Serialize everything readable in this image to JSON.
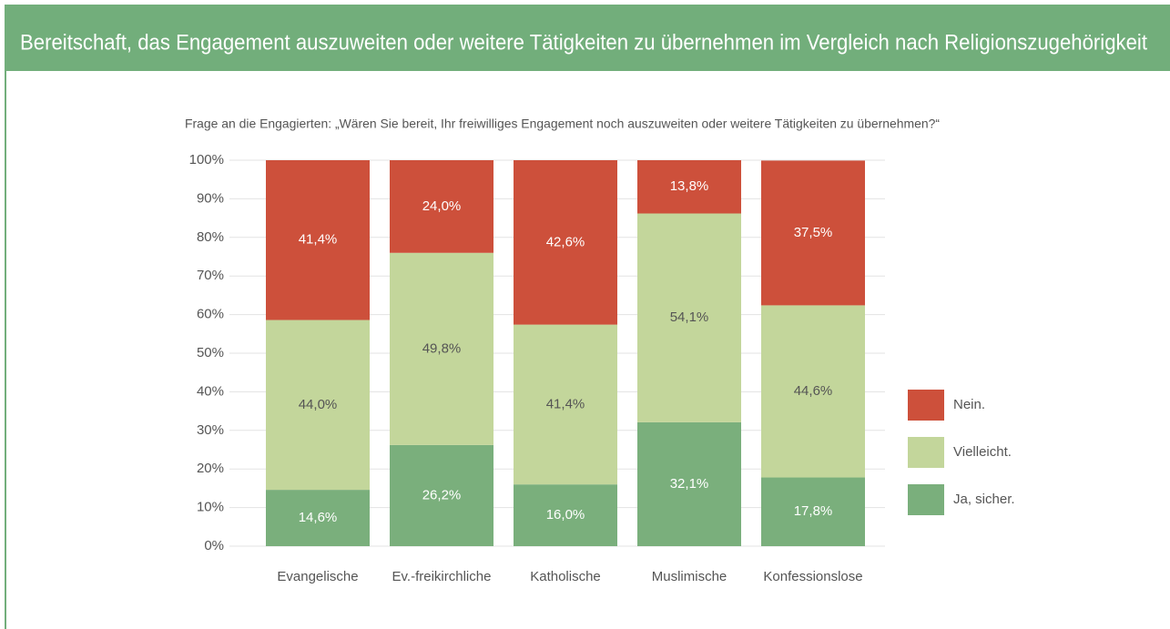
{
  "chart_data": {
    "type": "stacked_bar",
    "title": "Bereitschaft, das Engagement auszuweiten oder weitere Tätigkeiten zu übernehmen im Vergleich nach Religionszugehörigkeit",
    "subtitle": "Frage an die Engagierten: „Wären Sie bereit, Ihr freiwilliges Engagement noch auszuweiten oder weitere Tätigkeiten zu übernehmen?“",
    "categories": [
      "Evangelische",
      "Ev.-freikirchliche",
      "Katholische",
      "Muslimische",
      "Konfessionslose"
    ],
    "series": [
      {
        "name": "Ja, sicher.",
        "color": "#7aaf7c",
        "values": [
          14.6,
          26.2,
          16.0,
          32.1,
          17.8
        ],
        "value_labels": [
          "14,6%",
          "26,2%",
          "16,0%",
          "32,1%",
          "17,8%"
        ]
      },
      {
        "name": "Vielleicht.",
        "color": "#c3d69b",
        "values": [
          44.0,
          49.8,
          41.4,
          54.1,
          44.6
        ],
        "value_labels": [
          "44,0%",
          "49,8%",
          "41,4%",
          "54,1%",
          "44,6%"
        ]
      },
      {
        "name": "Nein.",
        "color": "#cd503b",
        "values": [
          41.4,
          24.0,
          42.6,
          13.8,
          37.5
        ],
        "value_labels": [
          "41,4%",
          "24,0%",
          "42,6%",
          "13,8%",
          "37,5%"
        ]
      }
    ],
    "ylim": [
      0,
      100
    ],
    "yticks": [
      {
        "value": 0,
        "label": "0%"
      },
      {
        "value": 10,
        "label": "10%"
      },
      {
        "value": 20,
        "label": "20%"
      },
      {
        "value": 30,
        "label": "30%"
      },
      {
        "value": 40,
        "label": "40%"
      },
      {
        "value": 50,
        "label": "50%"
      },
      {
        "value": 60,
        "label": "60%"
      },
      {
        "value": 70,
        "label": "70%"
      },
      {
        "value": 80,
        "label": "80%"
      },
      {
        "value": 90,
        "label": "90%"
      },
      {
        "value": 100,
        "label": "100%"
      }
    ],
    "grid": true,
    "legend": "right"
  }
}
